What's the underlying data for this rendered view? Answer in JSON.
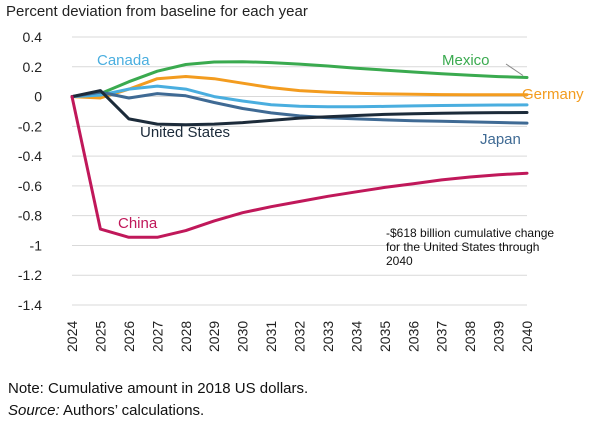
{
  "chart_data": {
    "type": "line",
    "title": "Percent deviation from baseline for each year",
    "xlabel": "",
    "ylabel": "",
    "x": [
      "2024",
      "2025",
      "2026",
      "2027",
      "2028",
      "2029",
      "2030",
      "2031",
      "2032",
      "2033",
      "2034",
      "2035",
      "2036",
      "2037",
      "2038",
      "2039",
      "2040"
    ],
    "ylim": [
      -1.4,
      0.4
    ],
    "yticks": [
      "0.4",
      "0.2",
      "0",
      "-0.2",
      "-0.4",
      "-0.6",
      "-0.8",
      "-1",
      "-1.2",
      "-1.4"
    ],
    "grid": true,
    "legend": "inline labels",
    "series": [
      {
        "name": "Mexico",
        "color": "#3aaa4f",
        "values": [
          0,
          0.02,
          0.1,
          0.17,
          0.215,
          0.232,
          0.234,
          0.228,
          0.218,
          0.205,
          0.19,
          0.178,
          0.165,
          0.153,
          0.143,
          0.134,
          0.128
        ]
      },
      {
        "name": "Germany",
        "color": "#f39c1f",
        "values": [
          0,
          -0.01,
          0.05,
          0.12,
          0.135,
          0.12,
          0.09,
          0.06,
          0.04,
          0.03,
          0.022,
          0.018,
          0.015,
          0.013,
          0.012,
          0.012,
          0.012
        ]
      },
      {
        "name": "Canada",
        "color": "#4aaedf",
        "values": [
          0,
          0.01,
          0.05,
          0.07,
          0.05,
          0.0,
          -0.03,
          -0.055,
          -0.065,
          -0.068,
          -0.068,
          -0.066,
          -0.063,
          -0.06,
          -0.058,
          -0.057,
          -0.056
        ]
      },
      {
        "name": "Japan",
        "color": "#3f6a94",
        "values": [
          0,
          0.03,
          -0.01,
          0.02,
          0.005,
          -0.04,
          -0.08,
          -0.11,
          -0.13,
          -0.142,
          -0.15,
          -0.157,
          -0.162,
          -0.166,
          -0.17,
          -0.174,
          -0.178
        ]
      },
      {
        "name": "United States",
        "color": "#1c2b3a",
        "values": [
          0,
          0.04,
          -0.15,
          -0.185,
          -0.19,
          -0.185,
          -0.175,
          -0.16,
          -0.145,
          -0.135,
          -0.127,
          -0.12,
          -0.115,
          -0.112,
          -0.11,
          -0.108,
          -0.107
        ]
      },
      {
        "name": "China",
        "color": "#c0185a",
        "values": [
          0,
          -0.89,
          -0.945,
          -0.945,
          -0.9,
          -0.835,
          -0.78,
          -0.74,
          -0.705,
          -0.67,
          -0.64,
          -0.61,
          -0.585,
          -0.56,
          -0.54,
          -0.525,
          -0.515
        ]
      }
    ],
    "annotation": "-$618 billion cumulative change for the United States through 2040"
  },
  "note": {
    "text": "Note: Cumulative amount in 2018 US dollars.",
    "source_label": "Source:",
    "source_text": " Authors’ calculations."
  }
}
